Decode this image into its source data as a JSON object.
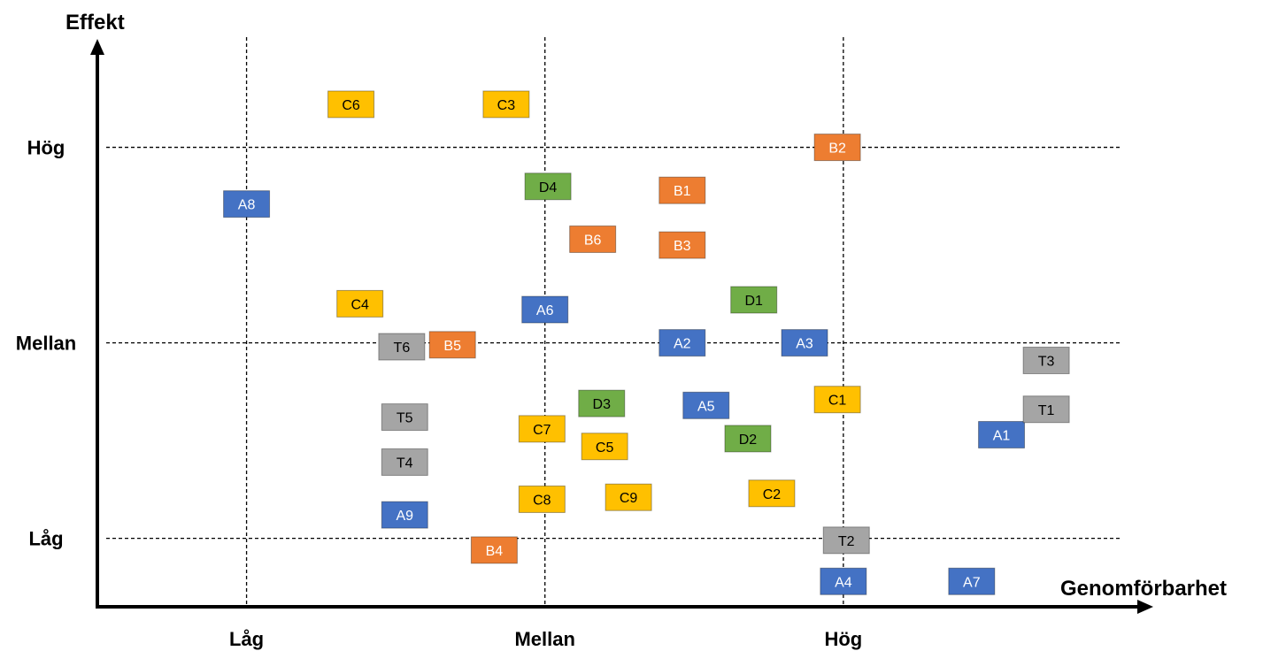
{
  "chart_data": {
    "type": "scatter",
    "title": "",
    "xlabel": "Genomförbarhet",
    "ylabel": "Effekt",
    "x_ticks": [
      "Låg",
      "Mellan",
      "Hög"
    ],
    "y_ticks": [
      "Låg",
      "Mellan",
      "Hög"
    ],
    "xlim": [
      0.5,
      4.0
    ],
    "ylim": [
      0.65,
      3.55
    ],
    "grid": true,
    "series": [
      {
        "color": "#4472c4",
        "points": [
          {
            "label": "A1",
            "x": 3.53,
            "y": 1.53
          },
          {
            "label": "A2",
            "x": 2.46,
            "y": 2.0
          },
          {
            "label": "A3",
            "x": 2.87,
            "y": 2.0
          },
          {
            "label": "A4",
            "x": 3.0,
            "y": 0.78
          },
          {
            "label": "A5",
            "x": 2.54,
            "y": 1.68
          },
          {
            "label": "A6",
            "x": 2.0,
            "y": 2.17
          },
          {
            "label": "A7",
            "x": 3.43,
            "y": 0.78
          },
          {
            "label": "A8",
            "x": 1.0,
            "y": 2.71
          },
          {
            "label": "A9",
            "x": 1.53,
            "y": 1.12
          }
        ]
      },
      {
        "color": "#ed7d31",
        "points": [
          {
            "label": "B1",
            "x": 2.46,
            "y": 2.78
          },
          {
            "label": "B2",
            "x": 2.98,
            "y": 3.0
          },
          {
            "label": "B3",
            "x": 2.46,
            "y": 2.5
          },
          {
            "label": "B4",
            "x": 1.83,
            "y": 0.94
          },
          {
            "label": "B5",
            "x": 1.69,
            "y": 1.99
          },
          {
            "label": "B6",
            "x": 2.16,
            "y": 2.53
          }
        ]
      },
      {
        "color": "#ffc000",
        "points": [
          {
            "label": "C1",
            "x": 2.98,
            "y": 1.71
          },
          {
            "label": "C2",
            "x": 2.76,
            "y": 1.23
          },
          {
            "label": "C3",
            "x": 1.87,
            "y": 3.22
          },
          {
            "label": "C4",
            "x": 1.38,
            "y": 2.2
          },
          {
            "label": "C5",
            "x": 2.2,
            "y": 1.47
          },
          {
            "label": "C6",
            "x": 1.35,
            "y": 3.22
          },
          {
            "label": "C7",
            "x": 1.99,
            "y": 1.56
          },
          {
            "label": "C8",
            "x": 1.99,
            "y": 1.2
          },
          {
            "label": "C9",
            "x": 2.28,
            "y": 1.21
          }
        ]
      },
      {
        "color": "#70ad47",
        "points": [
          {
            "label": "D1",
            "x": 2.7,
            "y": 2.22
          },
          {
            "label": "D2",
            "x": 2.68,
            "y": 1.51
          },
          {
            "label": "D3",
            "x": 2.19,
            "y": 1.69
          },
          {
            "label": "D4",
            "x": 2.01,
            "y": 2.8
          }
        ]
      },
      {
        "color": "#a5a5a5",
        "points": [
          {
            "label": "T1",
            "x": 3.68,
            "y": 1.66
          },
          {
            "label": "T2",
            "x": 3.01,
            "y": 0.99
          },
          {
            "label": "T3",
            "x": 3.68,
            "y": 1.91
          },
          {
            "label": "T4",
            "x": 1.53,
            "y": 1.39
          },
          {
            "label": "T5",
            "x": 1.53,
            "y": 1.62
          },
          {
            "label": "T6",
            "x": 1.52,
            "y": 1.98
          }
        ]
      }
    ]
  }
}
